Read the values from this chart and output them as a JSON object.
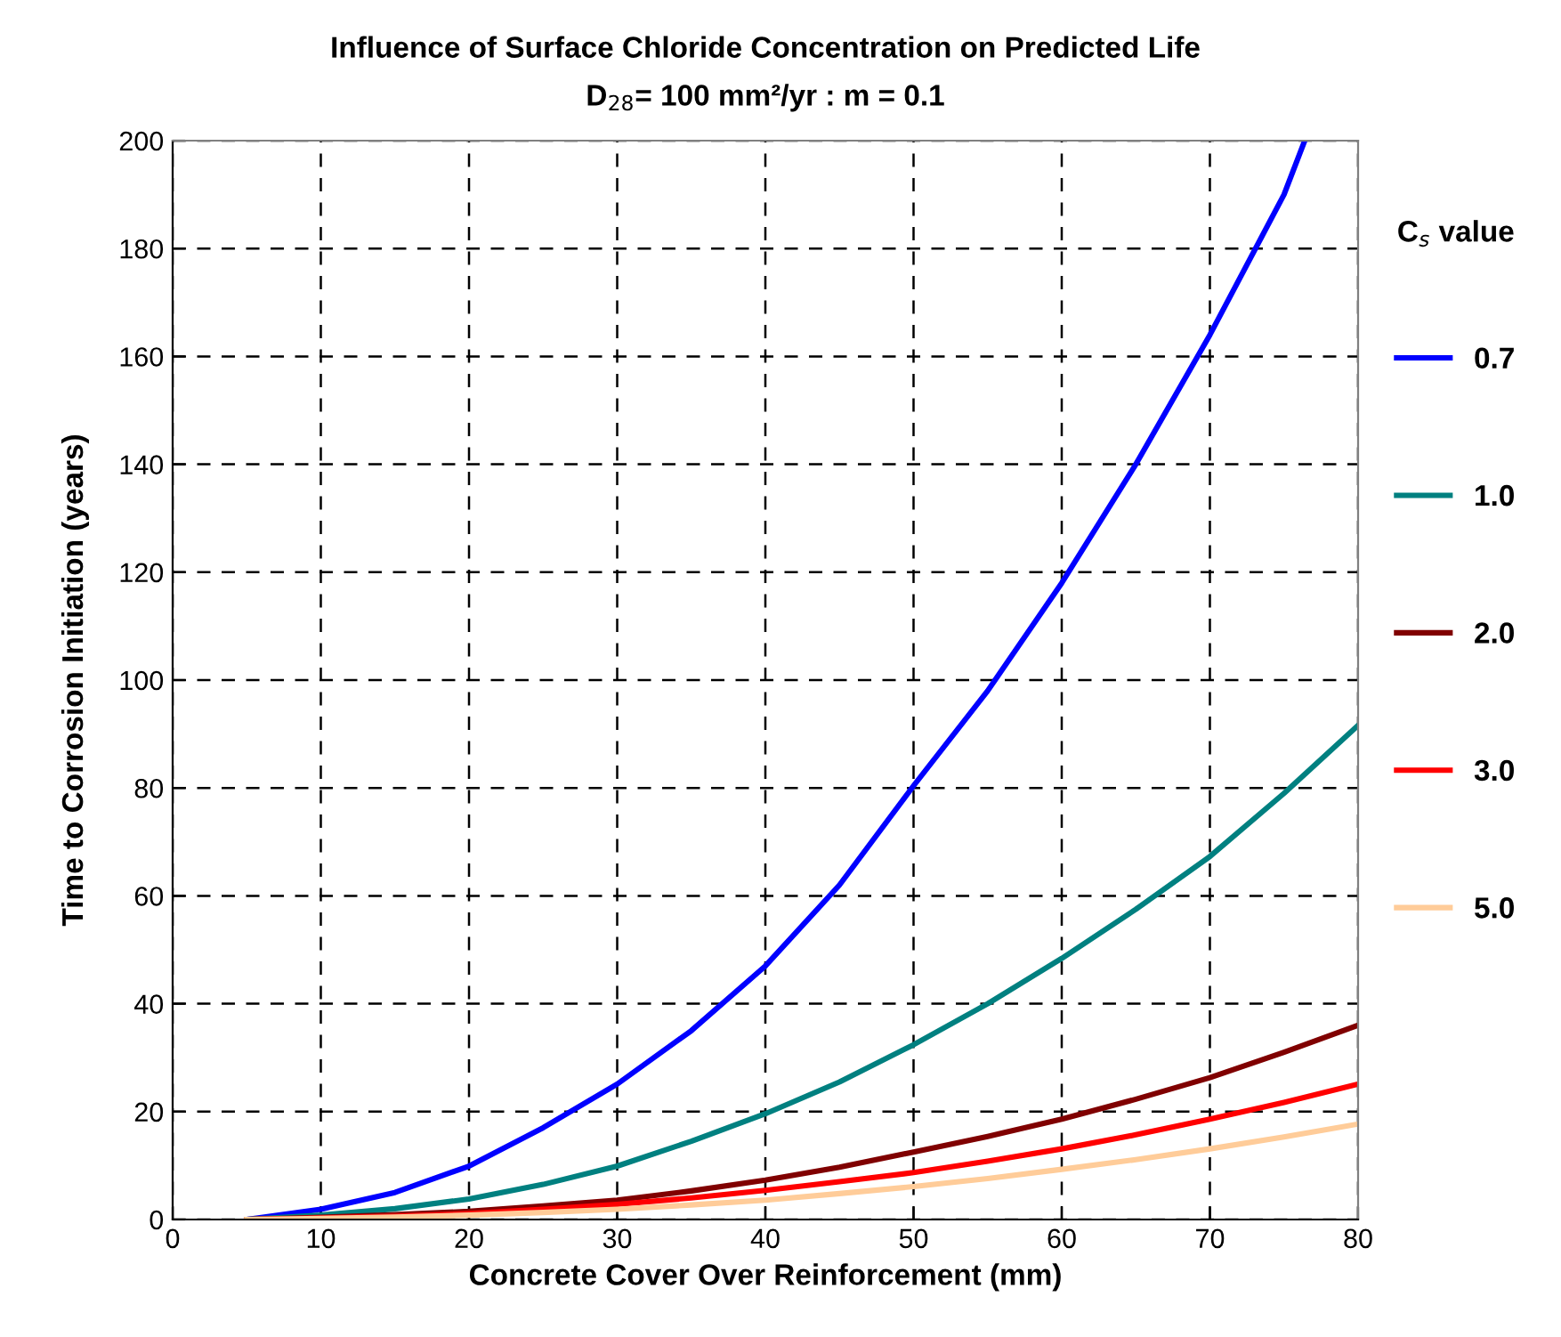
{
  "chart_data": {
    "type": "line",
    "title": "Influence of Surface Chloride Concentration on Predicted Life",
    "subtitle": "D$_{28}$= 100 mm²/yr : m = 0.1",
    "xlabel": "Concrete Cover Over Reinforcement (mm)",
    "ylabel": "Time to Corrosion Initiation (years)",
    "legend_title": "C$_{s}$ value",
    "legend": "right",
    "grid": true,
    "line_style": "solid",
    "marker": "none",
    "xlim": [
      0,
      80
    ],
    "xticks": [
      0,
      10,
      20,
      30,
      40,
      50,
      60,
      70,
      80
    ],
    "ylim": [
      0,
      200
    ],
    "yticks": [
      0,
      20,
      40,
      60,
      80,
      100,
      120,
      140,
      160,
      180,
      200
    ],
    "series": [
      {
        "name": "0.7",
        "color": "#0000ff",
        "x": [
          5,
          10,
          15,
          20,
          25,
          30,
          35,
          40,
          45,
          50,
          55,
          60,
          65,
          70,
          75,
          76.4
        ],
        "values": [
          0,
          1.9,
          5,
          9.9,
          17,
          25.1,
          35,
          47,
          62,
          80.4,
          98,
          118,
          140,
          164,
          190,
          200
        ]
      },
      {
        "name": "1.0",
        "color": "#008080",
        "x": [
          5,
          10,
          15,
          20,
          25,
          30,
          35,
          40,
          45,
          50,
          55,
          60,
          65,
          70,
          75,
          80
        ],
        "values": [
          0,
          0.8,
          2,
          3.8,
          6.5,
          9.9,
          14.5,
          19.6,
          25.5,
          32.4,
          40,
          48.4,
          57.5,
          67.3,
          79,
          91.6
        ]
      },
      {
        "name": "2.0",
        "color": "#800000",
        "x": [
          5,
          10,
          15,
          20,
          25,
          30,
          35,
          40,
          45,
          50,
          55,
          60,
          65,
          70,
          75,
          80
        ],
        "values": [
          0,
          0.4,
          0.9,
          1.5,
          2.5,
          3.6,
          5.3,
          7.3,
          9.7,
          12.5,
          15.4,
          18.6,
          22.3,
          26.3,
          31,
          36
        ]
      },
      {
        "name": "3.0",
        "color": "#ff0000",
        "x": [
          5,
          10,
          15,
          20,
          25,
          30,
          35,
          40,
          45,
          50,
          55,
          60,
          65,
          70,
          75,
          80
        ],
        "values": [
          0,
          0.3,
          0.6,
          1.1,
          1.9,
          2.8,
          4,
          5.4,
          7,
          8.7,
          10.8,
          13.1,
          15.7,
          18.6,
          21.7,
          25.1
        ]
      },
      {
        "name": "5.0",
        "color": "#ffcc99",
        "x": [
          5,
          10,
          15,
          20,
          25,
          30,
          35,
          40,
          45,
          50,
          55,
          60,
          65,
          70,
          75,
          80
        ],
        "values": [
          0,
          0.2,
          0.45,
          0.8,
          1.3,
          1.9,
          2.7,
          3.6,
          4.8,
          6.1,
          7.6,
          9.3,
          11.1,
          13.1,
          15.3,
          17.7
        ]
      }
    ]
  }
}
